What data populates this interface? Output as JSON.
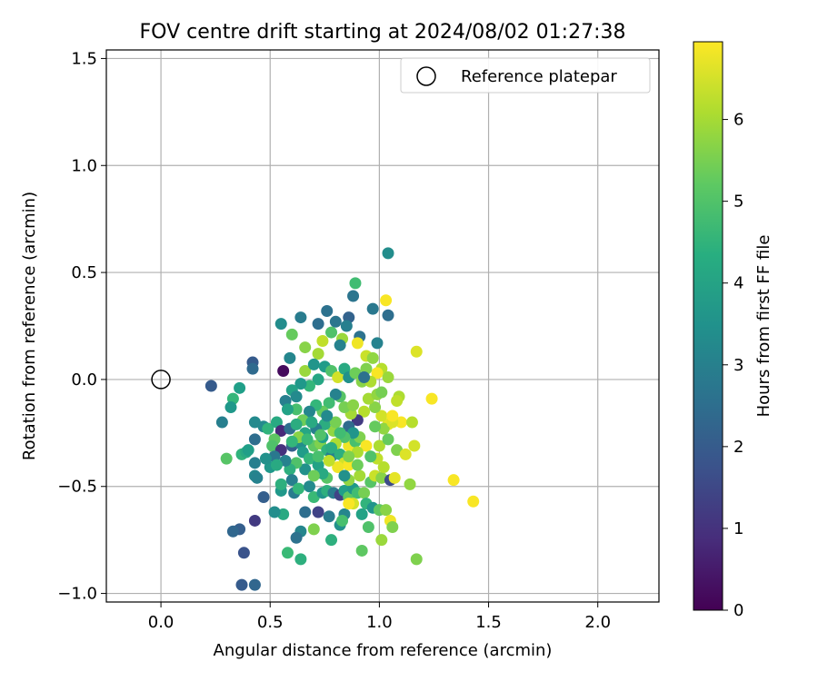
{
  "chart_data": {
    "type": "scatter",
    "title": "FOV centre drift starting at 2024/08/02 01:27:38",
    "xlabel": "Angular distance from reference (arcmin)",
    "ylabel": "Rotation from reference (arcmin)",
    "xlim": [
      -0.25,
      2.28
    ],
    "ylim": [
      -1.04,
      1.54
    ],
    "xticks": [
      0.0,
      0.5,
      1.0,
      1.5,
      2.0
    ],
    "xtick_labels": [
      "0.0",
      "0.5",
      "1.0",
      "1.5",
      "2.0"
    ],
    "yticks": [
      -1.0,
      -0.5,
      0.0,
      0.5,
      1.0,
      1.5
    ],
    "ytick_labels": [
      "−1.0",
      "−0.5",
      "0.0",
      "0.5",
      "1.0",
      "1.5"
    ],
    "grid": true,
    "legend": {
      "placement": "top-right",
      "entries": [
        "Reference platepar"
      ]
    },
    "reference_point": {
      "x": 0.0,
      "y": 0.0,
      "label": "Reference platepar"
    },
    "colorbar": {
      "label": "Hours from first FF file",
      "colormap": "viridis",
      "range": [
        0,
        6.95
      ],
      "ticks": [
        0,
        1,
        2,
        3,
        4,
        5,
        6
      ],
      "tick_labels": [
        "0",
        "1",
        "2",
        "3",
        "4",
        "5",
        "6"
      ]
    },
    "points": [
      {
        "x": 1.04,
        "y": 0.59,
        "t": 3.4
      },
      {
        "x": 0.89,
        "y": 0.45,
        "t": 4.8
      },
      {
        "x": 0.88,
        "y": 0.39,
        "t": 2.7
      },
      {
        "x": 1.03,
        "y": 0.37,
        "t": 6.9
      },
      {
        "x": 0.97,
        "y": 0.33,
        "t": 2.8
      },
      {
        "x": 1.04,
        "y": 0.3,
        "t": 2.5
      },
      {
        "x": 0.76,
        "y": 0.32,
        "t": 2.6
      },
      {
        "x": 0.64,
        "y": 0.29,
        "t": 2.9
      },
      {
        "x": 0.55,
        "y": 0.26,
        "t": 3.4
      },
      {
        "x": 0.6,
        "y": 0.21,
        "t": 5.3
      },
      {
        "x": 0.72,
        "y": 0.26,
        "t": 2.5
      },
      {
        "x": 0.8,
        "y": 0.27,
        "t": 2.7
      },
      {
        "x": 0.86,
        "y": 0.29,
        "t": 2.2
      },
      {
        "x": 0.85,
        "y": 0.25,
        "t": 3.0
      },
      {
        "x": 0.91,
        "y": 0.2,
        "t": 2.6
      },
      {
        "x": 0.99,
        "y": 0.17,
        "t": 3.1
      },
      {
        "x": 0.78,
        "y": 0.22,
        "t": 5.0
      },
      {
        "x": 0.83,
        "y": 0.19,
        "t": 5.9
      },
      {
        "x": 0.74,
        "y": 0.18,
        "t": 6.3
      },
      {
        "x": 0.66,
        "y": 0.15,
        "t": 5.7
      },
      {
        "x": 1.17,
        "y": 0.13,
        "t": 6.6
      },
      {
        "x": 0.59,
        "y": 0.1,
        "t": 3.2
      },
      {
        "x": 0.42,
        "y": 0.08,
        "t": 2.0
      },
      {
        "x": 0.42,
        "y": 0.05,
        "t": 2.4
      },
      {
        "x": 0.56,
        "y": 0.04,
        "t": 0.2
      },
      {
        "x": 0.72,
        "y": 0.12,
        "t": 6.0
      },
      {
        "x": 0.82,
        "y": 0.16,
        "t": 3.1
      },
      {
        "x": 0.9,
        "y": 0.17,
        "t": 6.8
      },
      {
        "x": 0.94,
        "y": 0.11,
        "t": 6.4
      },
      {
        "x": 0.97,
        "y": 0.1,
        "t": 5.8
      },
      {
        "x": 1.01,
        "y": 0.05,
        "t": 6.2
      },
      {
        "x": 0.99,
        "y": 0.03,
        "t": 6.9
      },
      {
        "x": 0.94,
        "y": 0.05,
        "t": 5.6
      },
      {
        "x": 1.04,
        "y": 0.01,
        "t": 5.9
      },
      {
        "x": 0.66,
        "y": 0.04,
        "t": 5.9
      },
      {
        "x": 0.7,
        "y": 0.07,
        "t": 3.6
      },
      {
        "x": 0.75,
        "y": 0.06,
        "t": 3.8
      },
      {
        "x": 0.78,
        "y": 0.04,
        "t": 5.0
      },
      {
        "x": 0.81,
        "y": 0.01,
        "t": 6.5
      },
      {
        "x": 0.84,
        "y": 0.05,
        "t": 4.2
      },
      {
        "x": 0.86,
        "y": 0.01,
        "t": 3.5
      },
      {
        "x": 0.89,
        "y": 0.03,
        "t": 5.4
      },
      {
        "x": 0.92,
        "y": -0.01,
        "t": 5.7
      },
      {
        "x": 0.96,
        "y": -0.01,
        "t": 6.1
      },
      {
        "x": 0.72,
        "y": 0.0,
        "t": 4.1
      },
      {
        "x": 0.68,
        "y": -0.03,
        "t": 4.6
      },
      {
        "x": 0.64,
        "y": -0.02,
        "t": 3.7
      },
      {
        "x": 0.6,
        "y": -0.05,
        "t": 4.0
      },
      {
        "x": 0.62,
        "y": -0.08,
        "t": 3.3
      },
      {
        "x": 0.57,
        "y": -0.1,
        "t": 3.0
      },
      {
        "x": 0.23,
        "y": -0.03,
        "t": 2.0
      },
      {
        "x": 0.36,
        "y": -0.04,
        "t": 3.9
      },
      {
        "x": 0.33,
        "y": -0.09,
        "t": 4.6
      },
      {
        "x": 0.32,
        "y": -0.13,
        "t": 3.7
      },
      {
        "x": 0.28,
        "y": -0.2,
        "t": 3.0
      },
      {
        "x": 0.43,
        "y": -0.2,
        "t": 3.3
      },
      {
        "x": 0.47,
        "y": -0.22,
        "t": 3.3
      },
      {
        "x": 0.49,
        "y": -0.23,
        "t": 4.5
      },
      {
        "x": 0.53,
        "y": -0.2,
        "t": 4.2
      },
      {
        "x": 0.55,
        "y": -0.24,
        "t": 0.8
      },
      {
        "x": 0.59,
        "y": -0.23,
        "t": 2.5
      },
      {
        "x": 0.43,
        "y": -0.28,
        "t": 2.5
      },
      {
        "x": 0.52,
        "y": -0.28,
        "t": 5.2
      },
      {
        "x": 0.51,
        "y": -0.31,
        "t": 5.0
      },
      {
        "x": 0.55,
        "y": -0.33,
        "t": 1.0
      },
      {
        "x": 0.6,
        "y": -0.31,
        "t": 2.1
      },
      {
        "x": 0.64,
        "y": -0.3,
        "t": 3.4
      },
      {
        "x": 0.65,
        "y": -0.34,
        "t": 3.8
      },
      {
        "x": 0.68,
        "y": -0.37,
        "t": 4.6
      },
      {
        "x": 0.7,
        "y": -0.31,
        "t": 5.2
      },
      {
        "x": 0.73,
        "y": -0.3,
        "t": 5.6
      },
      {
        "x": 0.76,
        "y": -0.33,
        "t": 4.5
      },
      {
        "x": 0.78,
        "y": -0.36,
        "t": 3.0
      },
      {
        "x": 0.82,
        "y": -0.35,
        "t": 4.4
      },
      {
        "x": 0.84,
        "y": -0.39,
        "t": 6.5
      },
      {
        "x": 0.86,
        "y": -0.31,
        "t": 6.8
      },
      {
        "x": 0.89,
        "y": -0.29,
        "t": 4.9
      },
      {
        "x": 0.91,
        "y": -0.27,
        "t": 5.6
      },
      {
        "x": 0.94,
        "y": -0.31,
        "t": 6.9
      },
      {
        "x": 0.96,
        "y": -0.36,
        "t": 5.9
      },
      {
        "x": 0.99,
        "y": -0.37,
        "t": 6.3
      },
      {
        "x": 1.0,
        "y": -0.31,
        "t": 6.1
      },
      {
        "x": 1.04,
        "y": -0.28,
        "t": 5.3
      },
      {
        "x": 1.08,
        "y": -0.33,
        "t": 5.6
      },
      {
        "x": 1.12,
        "y": -0.35,
        "t": 6.6
      },
      {
        "x": 1.16,
        "y": -0.31,
        "t": 6.5
      },
      {
        "x": 1.14,
        "y": -0.49,
        "t": 5.8
      },
      {
        "x": 1.1,
        "y": -0.2,
        "t": 6.9
      },
      {
        "x": 1.15,
        "y": -0.2,
        "t": 6.2
      },
      {
        "x": 1.24,
        "y": -0.09,
        "t": 6.9
      },
      {
        "x": 1.34,
        "y": -0.47,
        "t": 6.9
      },
      {
        "x": 1.43,
        "y": -0.57,
        "t": 6.9
      },
      {
        "x": 1.04,
        "y": -0.21,
        "t": 6.7
      },
      {
        "x": 1.02,
        "y": -0.23,
        "t": 5.8
      },
      {
        "x": 1.01,
        "y": -0.17,
        "t": 6.5
      },
      {
        "x": 0.98,
        "y": -0.13,
        "t": 5.7
      },
      {
        "x": 0.95,
        "y": -0.09,
        "t": 6.0
      },
      {
        "x": 0.99,
        "y": -0.07,
        "t": 5.8
      },
      {
        "x": 1.01,
        "y": -0.06,
        "t": 5.5
      },
      {
        "x": 1.09,
        "y": -0.08,
        "t": 6.1
      },
      {
        "x": 1.08,
        "y": -0.1,
        "t": 6.3
      },
      {
        "x": 1.06,
        "y": -0.2,
        "t": 6.6
      },
      {
        "x": 0.93,
        "y": -0.15,
        "t": 6.2
      },
      {
        "x": 0.9,
        "y": -0.19,
        "t": 1.2
      },
      {
        "x": 0.87,
        "y": -0.16,
        "t": 6.0
      },
      {
        "x": 0.84,
        "y": -0.13,
        "t": 5.5
      },
      {
        "x": 0.82,
        "y": -0.08,
        "t": 5.1
      },
      {
        "x": 0.8,
        "y": -0.07,
        "t": 3.1
      },
      {
        "x": 0.77,
        "y": -0.11,
        "t": 4.8
      },
      {
        "x": 0.74,
        "y": -0.15,
        "t": 5.3
      },
      {
        "x": 0.71,
        "y": -0.12,
        "t": 4.6
      },
      {
        "x": 0.68,
        "y": -0.15,
        "t": 3.2
      },
      {
        "x": 0.65,
        "y": -0.19,
        "t": 5.4
      },
      {
        "x": 0.62,
        "y": -0.14,
        "t": 4.9
      },
      {
        "x": 0.86,
        "y": -0.22,
        "t": 2.4
      },
      {
        "x": 0.88,
        "y": -0.25,
        "t": 3.6
      },
      {
        "x": 0.84,
        "y": -0.27,
        "t": 5.0
      },
      {
        "x": 0.79,
        "y": -0.24,
        "t": 5.8
      },
      {
        "x": 0.75,
        "y": -0.21,
        "t": 4.3
      },
      {
        "x": 0.71,
        "y": -0.23,
        "t": 3.0
      },
      {
        "x": 0.66,
        "y": -0.25,
        "t": 4.1
      },
      {
        "x": 0.63,
        "y": -0.27,
        "t": 5.7
      },
      {
        "x": 0.8,
        "y": -0.3,
        "t": 6.1
      },
      {
        "x": 0.67,
        "y": -0.28,
        "t": 4.7
      },
      {
        "x": 0.72,
        "y": -0.4,
        "t": 4.0
      },
      {
        "x": 0.66,
        "y": -0.42,
        "t": 3.5
      },
      {
        "x": 0.62,
        "y": -0.39,
        "t": 5.0
      },
      {
        "x": 0.59,
        "y": -0.42,
        "t": 4.4
      },
      {
        "x": 0.57,
        "y": -0.38,
        "t": 3.1
      },
      {
        "x": 0.52,
        "y": -0.36,
        "t": 2.8
      },
      {
        "x": 0.5,
        "y": -0.41,
        "t": 3.7
      },
      {
        "x": 0.53,
        "y": -0.4,
        "t": 4.2
      },
      {
        "x": 0.48,
        "y": -0.37,
        "t": 3.5
      },
      {
        "x": 0.43,
        "y": -0.39,
        "t": 3.0
      },
      {
        "x": 0.37,
        "y": -0.35,
        "t": 4.5
      },
      {
        "x": 0.3,
        "y": -0.37,
        "t": 5.1
      },
      {
        "x": 0.39,
        "y": -0.34,
        "t": 4.2
      },
      {
        "x": 0.4,
        "y": -0.33,
        "t": 3.9
      },
      {
        "x": 0.43,
        "y": -0.45,
        "t": 3.2
      },
      {
        "x": 0.44,
        "y": -0.46,
        "t": 3.1
      },
      {
        "x": 0.47,
        "y": -0.55,
        "t": 2.1
      },
      {
        "x": 0.55,
        "y": -0.52,
        "t": 3.7
      },
      {
        "x": 0.55,
        "y": -0.49,
        "t": 4.4
      },
      {
        "x": 0.6,
        "y": -0.47,
        "t": 3.0
      },
      {
        "x": 0.61,
        "y": -0.53,
        "t": 2.9
      },
      {
        "x": 0.63,
        "y": -0.51,
        "t": 4.6
      },
      {
        "x": 0.68,
        "y": -0.5,
        "t": 3.3
      },
      {
        "x": 0.7,
        "y": -0.55,
        "t": 4.7
      },
      {
        "x": 0.74,
        "y": -0.53,
        "t": 3.6
      },
      {
        "x": 0.76,
        "y": -0.52,
        "t": 4.4
      },
      {
        "x": 0.79,
        "y": -0.53,
        "t": 2.9
      },
      {
        "x": 0.82,
        "y": -0.54,
        "t": 1.4
      },
      {
        "x": 0.84,
        "y": -0.52,
        "t": 3.9
      },
      {
        "x": 0.86,
        "y": -0.55,
        "t": 5.2
      },
      {
        "x": 0.88,
        "y": -0.51,
        "t": 3.7
      },
      {
        "x": 0.9,
        "y": -0.53,
        "t": 4.8
      },
      {
        "x": 0.93,
        "y": -0.53,
        "t": 5.5
      },
      {
        "x": 0.96,
        "y": -0.48,
        "t": 5.1
      },
      {
        "x": 0.98,
        "y": -0.45,
        "t": 6.4
      },
      {
        "x": 1.01,
        "y": -0.46,
        "t": 5.7
      },
      {
        "x": 1.05,
        "y": -0.47,
        "t": 1.6
      },
      {
        "x": 1.07,
        "y": -0.46,
        "t": 6.7
      },
      {
        "x": 0.94,
        "y": -0.58,
        "t": 4.5
      },
      {
        "x": 0.97,
        "y": -0.6,
        "t": 3.6
      },
      {
        "x": 1.0,
        "y": -0.61,
        "t": 5.2
      },
      {
        "x": 1.03,
        "y": -0.61,
        "t": 5.7
      },
      {
        "x": 1.05,
        "y": -0.66,
        "t": 6.8
      },
      {
        "x": 1.06,
        "y": -0.69,
        "t": 5.6
      },
      {
        "x": 0.95,
        "y": -0.69,
        "t": 5.0
      },
      {
        "x": 1.01,
        "y": -0.75,
        "t": 5.9
      },
      {
        "x": 0.92,
        "y": -0.63,
        "t": 4.0
      },
      {
        "x": 0.88,
        "y": -0.58,
        "t": 6.5
      },
      {
        "x": 0.84,
        "y": -0.63,
        "t": 3.2
      },
      {
        "x": 0.82,
        "y": -0.68,
        "t": 3.5
      },
      {
        "x": 0.83,
        "y": -0.66,
        "t": 4.9
      },
      {
        "x": 0.77,
        "y": -0.64,
        "t": 2.9
      },
      {
        "x": 0.72,
        "y": -0.62,
        "t": 1.4
      },
      {
        "x": 0.66,
        "y": -0.62,
        "t": 2.5
      },
      {
        "x": 0.64,
        "y": -0.71,
        "t": 3.2
      },
      {
        "x": 0.62,
        "y": -0.74,
        "t": 2.6
      },
      {
        "x": 0.7,
        "y": -0.7,
        "t": 5.6
      },
      {
        "x": 0.78,
        "y": -0.75,
        "t": 4.4
      },
      {
        "x": 0.92,
        "y": -0.8,
        "t": 5.2
      },
      {
        "x": 0.58,
        "y": -0.81,
        "t": 4.7
      },
      {
        "x": 0.64,
        "y": -0.84,
        "t": 4.4
      },
      {
        "x": 1.17,
        "y": -0.84,
        "t": 5.6
      },
      {
        "x": 0.56,
        "y": -0.63,
        "t": 4.2
      },
      {
        "x": 0.52,
        "y": -0.62,
        "t": 3.4
      },
      {
        "x": 0.43,
        "y": -0.66,
        "t": 1.2
      },
      {
        "x": 0.36,
        "y": -0.7,
        "t": 2.1
      },
      {
        "x": 0.33,
        "y": -0.71,
        "t": 2.3
      },
      {
        "x": 0.38,
        "y": -0.81,
        "t": 1.8
      },
      {
        "x": 0.37,
        "y": -0.96,
        "t": 2.0
      },
      {
        "x": 0.43,
        "y": -0.96,
        "t": 2.3
      },
      {
        "x": 0.93,
        "y": 0.01,
        "t": 2.6
      },
      {
        "x": 0.96,
        "y": -0.36,
        "t": 5.0
      },
      {
        "x": 0.81,
        "y": -0.41,
        "t": 6.8
      },
      {
        "x": 0.86,
        "y": -0.4,
        "t": 6.9
      },
      {
        "x": 0.86,
        "y": -0.47,
        "t": 5.8
      },
      {
        "x": 0.91,
        "y": -0.45,
        "t": 6.0
      },
      {
        "x": 0.84,
        "y": -0.45,
        "t": 3.5
      },
      {
        "x": 0.76,
        "y": -0.46,
        "t": 5.1
      },
      {
        "x": 0.74,
        "y": -0.44,
        "t": 4.2
      },
      {
        "x": 0.7,
        "y": -0.45,
        "t": 5.4
      },
      {
        "x": 0.86,
        "y": -0.58,
        "t": 6.9
      },
      {
        "x": 0.77,
        "y": -0.38,
        "t": 6.3
      },
      {
        "x": 0.72,
        "y": -0.36,
        "t": 4.9
      },
      {
        "x": 0.8,
        "y": -0.2,
        "t": 5.5
      },
      {
        "x": 0.76,
        "y": -0.17,
        "t": 3.3
      },
      {
        "x": 0.88,
        "y": -0.12,
        "t": 5.7
      },
      {
        "x": 0.98,
        "y": -0.22,
        "t": 5.3
      },
      {
        "x": 1.06,
        "y": -0.17,
        "t": 6.9
      },
      {
        "x": 0.9,
        "y": -0.4,
        "t": 5.4
      },
      {
        "x": 1.02,
        "y": -0.41,
        "t": 6.2
      },
      {
        "x": 0.62,
        "y": -0.21,
        "t": 4.3
      },
      {
        "x": 0.58,
        "y": -0.14,
        "t": 4.0
      },
      {
        "x": 0.9,
        "y": -0.34,
        "t": 6.1
      },
      {
        "x": 0.82,
        "y": -0.25,
        "t": 4.8
      },
      {
        "x": 0.74,
        "y": -0.27,
        "t": 3.9
      },
      {
        "x": 0.69,
        "y": -0.2,
        "t": 4.2
      },
      {
        "x": 0.6,
        "y": -0.29,
        "t": 4.6
      },
      {
        "x": 0.86,
        "y": -0.36,
        "t": 5.6
      },
      {
        "x": 0.78,
        "y": -0.32,
        "t": 4.3
      },
      {
        "x": 0.73,
        "y": -0.26,
        "t": 5.0
      }
    ]
  }
}
